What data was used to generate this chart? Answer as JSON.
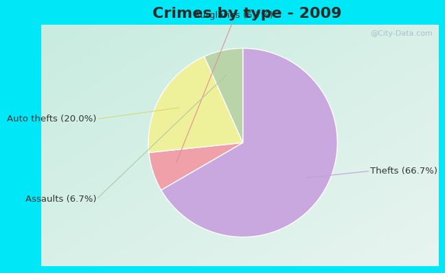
{
  "title": "Crimes by type - 2009",
  "slices": [
    {
      "label": "Thefts (66.7%)",
      "value": 66.7,
      "color": "#c9a8e0"
    },
    {
      "label": "Burglaries (6.7%)",
      "value": 6.7,
      "color": "#f0a0a8"
    },
    {
      "label": "Auto thefts (20.0%)",
      "value": 20.0,
      "color": "#eef09a"
    },
    {
      "label": "Assaults (6.7%)",
      "value": 6.7,
      "color": "#b8d4a8"
    }
  ],
  "background_top": "#00e8f8",
  "background_inner_tl": "#c8ece0",
  "background_inner_br": "#e8f4f0",
  "title_fontsize": 16,
  "label_fontsize": 9.5,
  "watermark": "@City-Data.com",
  "title_color": "#2a2a2a",
  "label_color": "#333333",
  "wedge_edgecolor": "white",
  "wedge_linewidth": 1.0
}
